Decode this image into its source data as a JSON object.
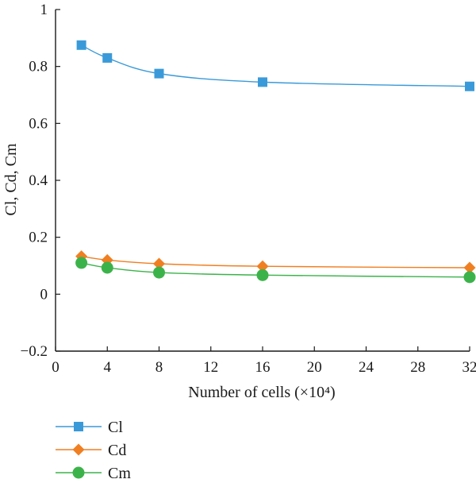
{
  "chart_data": {
    "type": "line",
    "title": "",
    "xlabel": "Number of cells (×10⁴)",
    "ylabel": "Cl, Cd, Cm",
    "xlim": [
      0,
      32
    ],
    "ylim": [
      -0.2,
      1
    ],
    "xticks": [
      0,
      4,
      8,
      12,
      16,
      20,
      24,
      28,
      32
    ],
    "xtick_labels": [
      "0",
      "4",
      "8",
      "12",
      "16",
      "20",
      "24",
      "28",
      "32"
    ],
    "yticks": [
      -0.2,
      0,
      0.2,
      0.4,
      0.6,
      0.8,
      1
    ],
    "ytick_labels": [
      "−0.2",
      "0",
      "0.2",
      "0.4",
      "0.6",
      "0.8",
      "1"
    ],
    "grid": false,
    "legend_position": "bottom-left, below plot",
    "x": [
      2,
      4,
      8,
      16,
      32
    ],
    "series": [
      {
        "name": "Cl",
        "values": [
          0.875,
          0.83,
          0.775,
          0.745,
          0.73
        ],
        "color": "#3a9ad9",
        "marker": "square"
      },
      {
        "name": "Cd",
        "values": [
          0.133,
          0.12,
          0.107,
          0.098,
          0.093
        ],
        "color": "#f07f22",
        "marker": "diamond"
      },
      {
        "name": "Cm",
        "values": [
          0.11,
          0.093,
          0.076,
          0.067,
          0.06
        ],
        "color": "#3cb34a",
        "marker": "circle"
      }
    ]
  }
}
